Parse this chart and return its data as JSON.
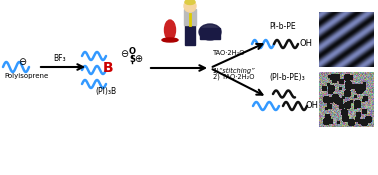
{
  "bg_color": "#ffffff",
  "wavy_color_blue": "#3399ff",
  "wavy_color_dark": "#111111",
  "boron_color": "#cc0000",
  "text_labels": {
    "polyisoprene": "Polyisoprene",
    "bf3": "BF₃",
    "pi3b": "(PI)₃B",
    "stitching": "1)“stitching”",
    "tao1": "2) TAO·2H₂O",
    "tao2": "TAO·2H₂O",
    "product1": "(PI-b-PE)₃",
    "product2": "PI-b-PE",
    "oh": "OH",
    "b_label": "B",
    "O_label": "O",
    "S_label": "S"
  },
  "sulfonate_symbol": "⊕",
  "minus_symbol": "⊖"
}
